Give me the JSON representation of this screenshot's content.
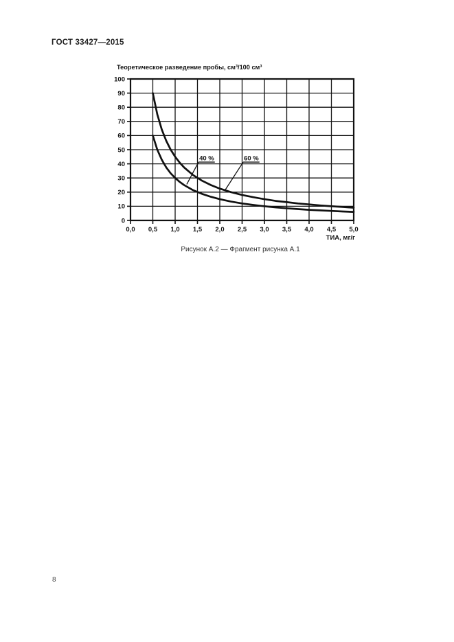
{
  "page": {
    "header": "ГОСТ 33427—2015",
    "page_number": "8",
    "caption": "Рисунок А.2 — Фрагмент рисунка А.1"
  },
  "chart_data": {
    "type": "line",
    "title": "Теоретическое разведение пробы, см³/100 см³",
    "xlabel": "ТИА, мг/г",
    "ylabel": "",
    "xlim": [
      0,
      5
    ],
    "ylim": [
      0,
      100
    ],
    "grid": true,
    "legend_position": "inline-annotations",
    "line_color": "#111111",
    "x_ticks": [
      0,
      0.5,
      1.0,
      1.5,
      2.0,
      2.5,
      3.0,
      3.5,
      4.0,
      4.5,
      5.0
    ],
    "x_tick_labels": [
      "0,0",
      "0,5",
      "1,0",
      "1,5",
      "2,0",
      "2,5",
      "3,0",
      "3,5",
      "4,0",
      "4,5",
      "5,0"
    ],
    "y_ticks": [
      0,
      10,
      20,
      30,
      40,
      50,
      60,
      70,
      80,
      90,
      100
    ],
    "y_tick_labels": [
      "0",
      "10",
      "20",
      "30",
      "40",
      "50",
      "60",
      "70",
      "80",
      "90",
      "100"
    ],
    "x": [
      0.5,
      0.6,
      0.7,
      0.8,
      0.9,
      1.0,
      1.1,
      1.2,
      1.4,
      1.6,
      1.8,
      2.0,
      2.25,
      2.5,
      2.75,
      3.0,
      3.25,
      3.5,
      3.75,
      4.0,
      4.25,
      4.5,
      4.75,
      5.0
    ],
    "series": [
      {
        "name": "60 %",
        "y": [
          90,
          75,
          64.3,
          56.3,
          50,
          45,
          40.9,
          37.5,
          32.1,
          28.1,
          25,
          22.5,
          20,
          18,
          16.4,
          15,
          13.8,
          12.9,
          12,
          11.3,
          10.6,
          10,
          9.5,
          9
        ]
      },
      {
        "name": "40 %",
        "y": [
          60,
          50,
          42.9,
          37.5,
          33.3,
          30,
          27.3,
          25,
          21.4,
          18.8,
          16.7,
          15,
          13.3,
          12,
          10.9,
          10,
          9.2,
          8.6,
          8,
          7.5,
          7.1,
          6.7,
          6.3,
          6
        ]
      }
    ],
    "annotations": [
      {
        "label": "40 %",
        "text_x": 1.54,
        "text_y": 42.5,
        "arrow_x": 1.26,
        "arrow_y": 25.5
      },
      {
        "label": "60 %",
        "text_x": 2.54,
        "text_y": 42.5,
        "arrow_x": 2.12,
        "arrow_y": 21.5
      }
    ]
  }
}
